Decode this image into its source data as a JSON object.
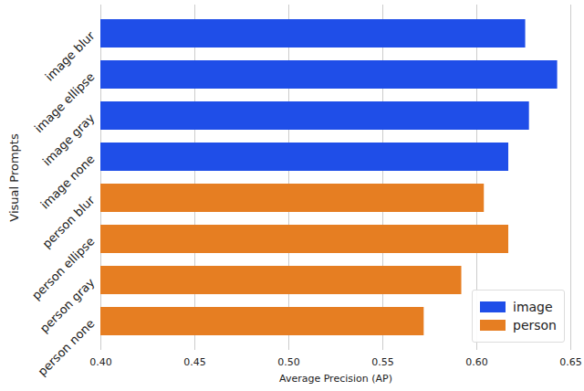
{
  "chart_data": {
    "type": "bar",
    "orientation": "horizontal",
    "categories": [
      "image blur",
      "image ellipse",
      "image gray",
      "image none",
      "person blur",
      "person ellipse",
      "person gray",
      "person none"
    ],
    "series": [
      {
        "name": "image",
        "color": "#1f4ee8",
        "values": [
          0.626,
          0.643,
          0.628,
          0.617,
          null,
          null,
          null,
          null
        ]
      },
      {
        "name": "person",
        "color": "#e67e22",
        "values": [
          null,
          null,
          null,
          null,
          0.604,
          0.617,
          0.592,
          0.572
        ]
      }
    ],
    "x_label": "Average Precision (AP)",
    "y_label": "Visual Prompts",
    "xlim": [
      0.4,
      0.65
    ],
    "xticks": [
      {
        "value": 0.4,
        "label": "0.40"
      },
      0.45,
      {
        "value": 0.5,
        "label": "0.50"
      },
      0.55,
      {
        "value": 0.6,
        "label": "0.60"
      },
      0.65
    ],
    "grid": true,
    "legend": "lower right"
  }
}
